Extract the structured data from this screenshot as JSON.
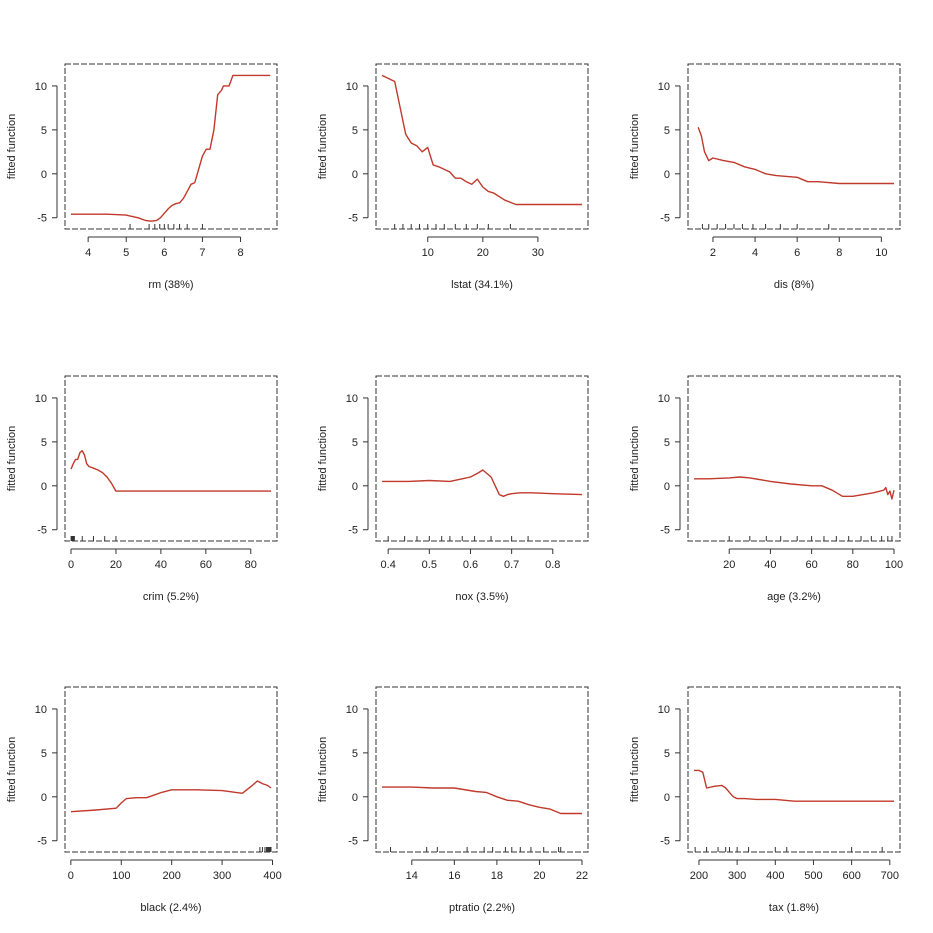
{
  "colors": {
    "curve": "#c0392b",
    "axis": "#333333",
    "background": "#ffffff"
  },
  "chart_data": [
    {
      "type": "line",
      "xlabel": "rm  (38%)",
      "ylabel": "fitted function",
      "xlim": [
        3.55,
        8.8
      ],
      "ylim": [
        -5.6,
        11.7
      ],
      "xticks": [
        4,
        5,
        6,
        7,
        8
      ],
      "yticks": [
        -5,
        0,
        5,
        10
      ],
      "x": [
        3.55,
        4.5,
        5.0,
        5.3,
        5.5,
        5.65,
        5.8,
        5.9,
        6.0,
        6.1,
        6.2,
        6.3,
        6.4,
        6.5,
        6.6,
        6.7,
        6.8,
        6.9,
        7.0,
        7.1,
        7.2,
        7.3,
        7.4,
        7.5,
        7.55,
        7.7,
        7.8,
        8.0,
        8.78
      ],
      "y": [
        -4.6,
        -4.6,
        -4.7,
        -5.0,
        -5.3,
        -5.4,
        -5.3,
        -5.0,
        -4.5,
        -4.0,
        -3.6,
        -3.4,
        -3.3,
        -2.8,
        -2.0,
        -1.2,
        -1.0,
        0.5,
        2.0,
        2.8,
        2.8,
        5.0,
        9.0,
        9.5,
        10.0,
        10.0,
        11.2,
        11.2,
        11.2
      ],
      "rug": [
        5.1,
        5.6,
        5.75,
        5.88,
        6.0,
        6.1,
        6.25,
        6.4,
        6.6,
        7.0
      ]
    },
    {
      "type": "line",
      "xlabel": "lstat  (34.1%)",
      "ylabel": "fitted function",
      "xlim": [
        1.7,
        38.0
      ],
      "ylim": [
        -5.6,
        11.7
      ],
      "xticks": [
        10,
        20,
        30
      ],
      "yticks": [
        -5,
        0,
        5,
        10
      ],
      "x": [
        1.7,
        4.0,
        5.0,
        6.0,
        7.0,
        8.0,
        9.0,
        10.0,
        11.0,
        12.0,
        13.0,
        14.0,
        15.0,
        16.0,
        17.0,
        18.0,
        19.0,
        20.0,
        21.0,
        22.0,
        24.0,
        26.0,
        28.0,
        30.0,
        38.0
      ],
      "y": [
        11.2,
        10.5,
        7.5,
        4.5,
        3.5,
        3.2,
        2.5,
        3.0,
        1.0,
        0.8,
        0.5,
        0.2,
        -0.5,
        -0.5,
        -0.9,
        -1.2,
        -0.6,
        -1.5,
        -2.0,
        -2.2,
        -3.0,
        -3.5,
        -3.5,
        -3.5,
        -3.5
      ],
      "rug": [
        4,
        5.5,
        7,
        8.5,
        10,
        11.5,
        13,
        15,
        17,
        19,
        21,
        25
      ]
    },
    {
      "type": "line",
      "xlabel": "dis  (8%)",
      "ylabel": "fitted function",
      "xlim": [
        1.1,
        10.6
      ],
      "ylim": [
        -5.6,
        11.7
      ],
      "xticks": [
        2,
        4,
        6,
        8,
        10
      ],
      "yticks": [
        -5,
        0,
        5,
        10
      ],
      "x": [
        1.3,
        1.45,
        1.6,
        1.8,
        2.0,
        2.5,
        3.0,
        3.5,
        4.0,
        4.5,
        5.0,
        5.5,
        6.0,
        6.5,
        7.0,
        8.0,
        9.0,
        10.6
      ],
      "y": [
        5.3,
        4.3,
        2.5,
        1.5,
        1.8,
        1.5,
        1.3,
        0.8,
        0.5,
        0.0,
        -0.2,
        -0.3,
        -0.4,
        -0.9,
        -0.9,
        -1.1,
        -1.1,
        -1.1
      ],
      "rug": [
        1.5,
        1.8,
        2.2,
        2.6,
        3.0,
        3.4,
        3.9,
        4.5,
        5.2,
        6.0,
        7.5
      ]
    },
    {
      "type": "line",
      "xlabel": "crim  (5.2%)",
      "ylabel": "fitted function",
      "xlim": [
        0,
        89
      ],
      "ylim": [
        -5.6,
        11.7
      ],
      "xticks": [
        0,
        20,
        40,
        60,
        80
      ],
      "yticks": [
        -5,
        0,
        5,
        10
      ],
      "x": [
        0.0,
        1.0,
        2.0,
        3.0,
        4.0,
        5.0,
        6.0,
        7.0,
        8.0,
        10.0,
        12.0,
        14.0,
        16.0,
        18.0,
        20.0,
        30.0,
        50.0,
        70.0,
        89.0
      ],
      "y": [
        1.9,
        2.5,
        3.0,
        3.0,
        3.8,
        4.0,
        3.5,
        2.5,
        2.2,
        2.0,
        1.8,
        1.5,
        1.0,
        0.3,
        -0.6,
        -0.6,
        -0.6,
        -0.6,
        -0.6
      ],
      "rug": [
        0.05,
        0.2,
        0.4,
        0.6,
        0.8,
        1.0,
        1.2,
        1.5,
        5,
        10,
        15,
        20
      ]
    },
    {
      "type": "line",
      "xlabel": "nox  (3.5%)",
      "ylabel": "fitted function",
      "xlim": [
        0.385,
        0.871
      ],
      "ylim": [
        -5.6,
        11.7
      ],
      "xticks": [
        0.4,
        0.5,
        0.6,
        0.7,
        0.8
      ],
      "yticks": [
        -5,
        0,
        5,
        10
      ],
      "x": [
        0.385,
        0.45,
        0.5,
        0.55,
        0.58,
        0.6,
        0.62,
        0.63,
        0.64,
        0.65,
        0.66,
        0.67,
        0.68,
        0.69,
        0.7,
        0.72,
        0.75,
        0.8,
        0.871
      ],
      "y": [
        0.5,
        0.5,
        0.6,
        0.5,
        0.8,
        1.0,
        1.5,
        1.8,
        1.4,
        1.0,
        0.0,
        -1.0,
        -1.2,
        -1.0,
        -0.9,
        -0.8,
        -0.8,
        -0.9,
        -1.0
      ],
      "rug": [
        0.4,
        0.44,
        0.47,
        0.5,
        0.53,
        0.55,
        0.58,
        0.61,
        0.65,
        0.7,
        0.74
      ]
    },
    {
      "type": "line",
      "xlabel": "age  (3.2%)",
      "ylabel": "fitted function",
      "xlim": [
        2.9,
        100.0
      ],
      "ylim": [
        -5.6,
        11.7
      ],
      "xticks": [
        20,
        40,
        60,
        80,
        100
      ],
      "yticks": [
        -5,
        0,
        5,
        10
      ],
      "x": [
        2.9,
        10.0,
        20.0,
        25.0,
        30.0,
        40.0,
        50.0,
        60.0,
        65.0,
        70.0,
        75.0,
        80.0,
        85.0,
        90.0,
        95.0,
        96.0,
        97.0,
        98.0,
        99.0,
        100.0
      ],
      "y": [
        0.8,
        0.8,
        0.9,
        1.0,
        0.9,
        0.5,
        0.2,
        0.0,
        0.0,
        -0.5,
        -1.2,
        -1.2,
        -1.0,
        -0.8,
        -0.5,
        -0.2,
        -1.0,
        -0.6,
        -1.5,
        -0.5
      ],
      "rug": [
        20,
        30,
        38,
        45,
        53,
        60,
        66,
        72,
        78,
        84,
        89,
        94,
        97,
        99
      ]
    },
    {
      "type": "line",
      "xlabel": "black  (2.4%)",
      "ylabel": "fitted function",
      "xlim": [
        0.3,
        397.0
      ],
      "ylim": [
        -5.6,
        11.7
      ],
      "xticks": [
        0,
        100,
        200,
        300,
        400
      ],
      "yticks": [
        -5,
        0,
        5,
        10
      ],
      "x": [
        0.3,
        50.0,
        90.0,
        100.0,
        110.0,
        130.0,
        150.0,
        170.0,
        180.0,
        200.0,
        250.0,
        300.0,
        340.0,
        360.0,
        370.0,
        380.0,
        390.0,
        397.0
      ],
      "y": [
        -1.7,
        -1.5,
        -1.3,
        -0.7,
        -0.2,
        -0.1,
        -0.1,
        0.3,
        0.5,
        0.8,
        0.8,
        0.7,
        0.4,
        1.3,
        1.8,
        1.5,
        1.3,
        1.0
      ],
      "rug": [
        375,
        380,
        385,
        388,
        390,
        392,
        394,
        396,
        397
      ]
    },
    {
      "type": "line",
      "xlabel": "ptratio  (2.2%)",
      "ylabel": "fitted function",
      "xlim": [
        12.6,
        22.0
      ],
      "ylim": [
        -5.6,
        11.7
      ],
      "xticks": [
        14,
        16,
        18,
        20,
        22
      ],
      "yticks": [
        -5,
        0,
        5,
        10
      ],
      "x": [
        12.6,
        14.0,
        15.0,
        16.0,
        17.0,
        17.5,
        18.0,
        18.5,
        19.0,
        19.5,
        20.0,
        20.5,
        21.0,
        22.0
      ],
      "y": [
        1.1,
        1.1,
        1.0,
        1.0,
        0.6,
        0.5,
        0.0,
        -0.4,
        -0.5,
        -0.9,
        -1.2,
        -1.4,
        -1.9,
        -1.9
      ],
      "rug": [
        13,
        14.7,
        15.2,
        16.6,
        17.4,
        17.8,
        18.4,
        18.7,
        19.1,
        19.6,
        20.2,
        20.9,
        21
      ]
    },
    {
      "type": "line",
      "xlabel": "tax  (1.8%)",
      "ylabel": "fitted function",
      "xlim": [
        187.0,
        711.0
      ],
      "ylim": [
        -5.6,
        11.7
      ],
      "xticks": [
        200,
        300,
        400,
        500,
        600,
        700
      ],
      "yticks": [
        -5,
        0,
        5,
        10
      ],
      "x": [
        187.0,
        200.0,
        210.0,
        220.0,
        240.0,
        260.0,
        270.0,
        280.0,
        290.0,
        300.0,
        320.0,
        350.0,
        400.0,
        450.0,
        711.0
      ],
      "y": [
        3.0,
        3.0,
        2.8,
        1.0,
        1.2,
        1.3,
        1.0,
        0.5,
        0.0,
        -0.2,
        -0.2,
        -0.3,
        -0.3,
        -0.5,
        -0.5
      ],
      "rug": [
        190,
        220,
        250,
        270,
        280,
        300,
        330,
        400,
        430,
        600,
        680
      ]
    }
  ]
}
